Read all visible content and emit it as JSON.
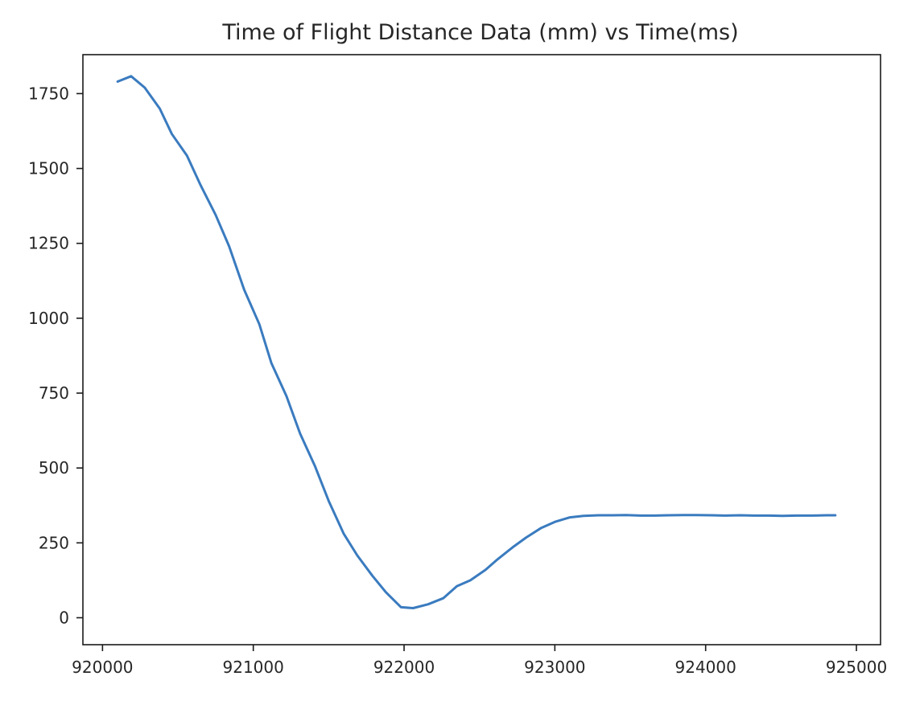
{
  "chart_data": {
    "type": "line",
    "title": "Time of Flight Distance Data (mm) vs Time(ms)",
    "xlabel": "",
    "ylabel": "",
    "xlim": [
      919870,
      925160
    ],
    "ylim": [
      -90,
      1880
    ],
    "x_ticks": [
      920000,
      921000,
      922000,
      923000,
      924000,
      925000
    ],
    "x_tick_labels": [
      "920000",
      "921000",
      "922000",
      "923000",
      "924000",
      "925000"
    ],
    "y_ticks": [
      0,
      250,
      500,
      750,
      1000,
      1250,
      1500,
      1750
    ],
    "y_tick_labels": [
      "0",
      "250",
      "500",
      "750",
      "1000",
      "1250",
      "1500",
      "1750"
    ],
    "grid": false,
    "legend": "none",
    "line_color": "#3a7bbf",
    "series": [
      {
        "x": [
          920100,
          920190,
          920280,
          920380,
          920460,
          920560,
          920650,
          920750,
          920840,
          920940,
          921040,
          921120,
          921220,
          921310,
          921410,
          921500,
          921600,
          921690,
          921790,
          921880,
          921980,
          922060,
          922160,
          922260,
          922350,
          922440,
          922540,
          922620,
          922720,
          922810,
          922910,
          923000,
          923100,
          923190,
          923290,
          923380,
          923470,
          923570,
          923660,
          923750,
          923850,
          923940,
          924040,
          924130,
          924230,
          924320,
          924420,
          924510,
          924600,
          924700,
          924800,
          924860
        ],
        "y": [
          1790,
          1808,
          1770,
          1700,
          1615,
          1543,
          1445,
          1345,
          1240,
          1095,
          980,
          850,
          740,
          615,
          505,
          390,
          280,
          208,
          140,
          85,
          35,
          32,
          45,
          65,
          105,
          125,
          160,
          195,
          235,
          268,
          300,
          320,
          335,
          340,
          342,
          342,
          343,
          341,
          341,
          342,
          343,
          343,
          342,
          341,
          342,
          341,
          341,
          340,
          341,
          341,
          342,
          342
        ]
      }
    ]
  }
}
